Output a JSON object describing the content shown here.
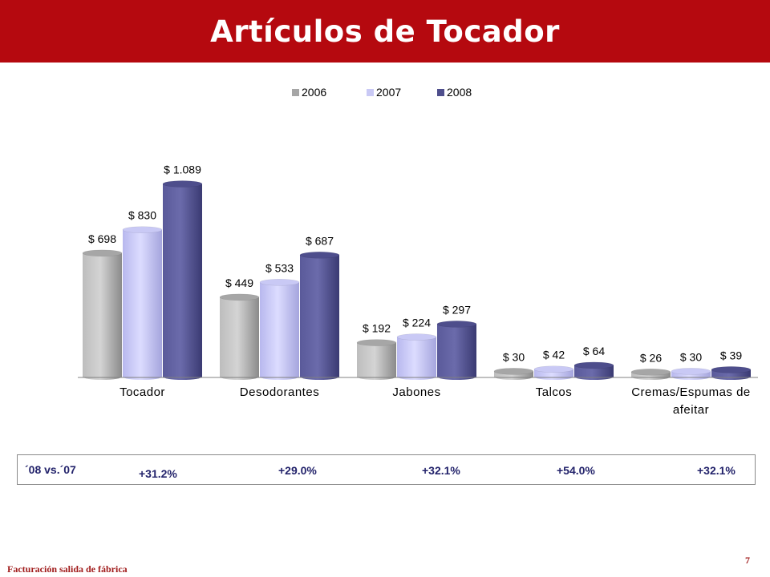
{
  "header": {
    "title": "Artículos de Tocador"
  },
  "chart_data": {
    "type": "bar",
    "categories": [
      "Tocador",
      "Desodorantes",
      "Jabones",
      "Talcos",
      "Cremas/Espumas de afeitar"
    ],
    "category_lines": [
      [
        "Tocador"
      ],
      [
        "Desodorantes"
      ],
      [
        "Jabones"
      ],
      [
        "Talcos"
      ],
      [
        "Cremas/Espumas de",
        "afeitar"
      ]
    ],
    "series": [
      {
        "name": "2006",
        "values": [
          698,
          449,
          192,
          30,
          26
        ],
        "labels": [
          "$ 698",
          "$ 449",
          "$ 192",
          "$ 30",
          "$ 26"
        ],
        "color": "#a6a6a6"
      },
      {
        "name": "2007",
        "values": [
          830,
          533,
          224,
          42,
          30
        ],
        "labels": [
          "$ 830",
          "$ 533",
          "$ 224",
          "$ 42",
          "$ 30"
        ],
        "color": "#c9c9f5"
      },
      {
        "name": "2008",
        "values": [
          1089,
          687,
          297,
          64,
          39
        ],
        "labels": [
          "$ 1.089",
          "$ 687",
          "$ 297",
          "$ 64",
          "$ 39"
        ],
        "color": "#4e4e8c"
      }
    ],
    "ylim": [
      0,
      1200
    ],
    "legend_position": "top-center",
    "grid": false
  },
  "comparison": {
    "label": "´08 vs.´07",
    "values": [
      "+31.2%",
      "+29.0%",
      "+32.1%",
      "+54.0%",
      "+32.1%"
    ]
  },
  "footer": {
    "note": "Facturación salida de fábrica",
    "page_number": "7"
  }
}
